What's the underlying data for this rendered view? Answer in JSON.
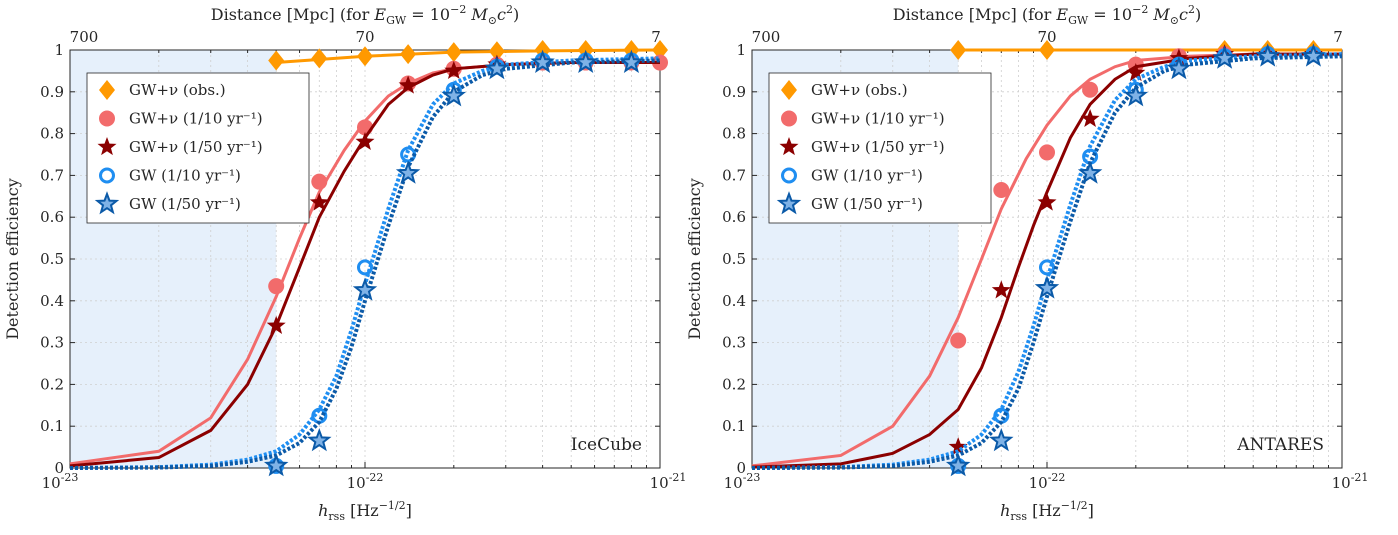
{
  "chart_data": [
    {
      "type": "line",
      "panel": "IceCube",
      "annotation": "IceCube",
      "xlabel": "h_rss [Hz^-1/2]",
      "ylabel": "Detection efficiency",
      "top_xlabel": "Distance [Mpc] (for E_GW = 10^-2 M_sun c^2)",
      "xscale": "log",
      "xlim": [
        1e-23,
        1e-21
      ],
      "ylim": [
        0,
        1
      ],
      "grid": true,
      "legend_position": "top-left",
      "x_ticks": [
        "10^-23",
        "10^-22",
        "10^-21"
      ],
      "y_ticks": [
        "0",
        "0.1",
        "0.2",
        "0.3",
        "0.4",
        "0.5",
        "0.6",
        "0.7",
        "0.8",
        "0.9",
        "1"
      ],
      "top_ticks": [
        "700",
        "70",
        "7"
      ],
      "shaded_region_x": [
        1e-23,
        5e-23
      ],
      "shaded_color": "#e6f0fb",
      "series": [
        {
          "name": "GW+ν (obs.)",
          "marker": "diamond",
          "color": "#ff9900",
          "x": [
            5e-23,
            7e-23,
            1e-22,
            1.4e-22,
            2e-22,
            2.8e-22,
            4e-22,
            5.6e-22,
            8e-22,
            1e-21
          ],
          "y": [
            0.975,
            0.98,
            0.985,
            0.99,
            0.995,
            0.997,
            1.0,
            1.0,
            1.0,
            1.0
          ],
          "curve": {
            "x": [
              5e-23,
              1e-22,
              2e-22,
              4e-22,
              1e-21
            ],
            "y": [
              0.97,
              0.985,
              0.995,
              0.998,
              1.0
            ]
          }
        },
        {
          "name": "GW+ν (1/10 yr⁻¹)",
          "marker": "circle-filled",
          "color": "#f26b6b",
          "x": [
            5e-23,
            7e-23,
            1e-22,
            1.4e-22,
            2e-22,
            2.8e-22,
            4e-22,
            5.6e-22,
            8e-22,
            1e-21
          ],
          "y": [
            0.435,
            0.685,
            0.815,
            0.92,
            0.955,
            0.965,
            0.97,
            0.97,
            0.97,
            0.97
          ],
          "curve": {
            "x": [
              1e-23,
              2e-23,
              3e-23,
              4e-23,
              5e-23,
              6e-23,
              7e-23,
              8.5e-23,
              1e-22,
              1.2e-22,
              1.4e-22,
              1.7e-22,
              2e-22,
              3e-22,
              5e-22,
              1e-21
            ],
            "y": [
              0.01,
              0.04,
              0.12,
              0.26,
              0.41,
              0.55,
              0.66,
              0.76,
              0.83,
              0.89,
              0.92,
              0.945,
              0.955,
              0.965,
              0.97,
              0.97
            ]
          }
        },
        {
          "name": "GW+ν (1/50 yr⁻¹)",
          "marker": "star-filled",
          "color": "#8b0000",
          "x": [
            5e-23,
            7e-23,
            1e-22,
            1.4e-22,
            2e-22,
            2.8e-22,
            4e-22,
            5.6e-22,
            8e-22
          ],
          "y": [
            0.34,
            0.635,
            0.78,
            0.915,
            0.95,
            0.965,
            0.97,
            0.97,
            0.97
          ],
          "curve": {
            "x": [
              1e-23,
              2e-23,
              3e-23,
              4e-23,
              5e-23,
              6e-23,
              7e-23,
              8.5e-23,
              1e-22,
              1.2e-22,
              1.4e-22,
              1.7e-22,
              2e-22,
              3e-22,
              5e-22,
              1e-21
            ],
            "y": [
              0.005,
              0.025,
              0.09,
              0.2,
              0.34,
              0.48,
              0.6,
              0.71,
              0.79,
              0.87,
              0.91,
              0.94,
              0.955,
              0.965,
              0.97,
              0.97
            ]
          }
        },
        {
          "name": "GW (1/10 yr⁻¹)",
          "marker": "circle-open",
          "color": "#1f8ef1",
          "x": [
            5e-23,
            7e-23,
            1e-22,
            1.4e-22,
            2e-22,
            2.8e-22,
            4e-22,
            5.6e-22,
            8e-22
          ],
          "y": [
            0.005,
            0.125,
            0.48,
            0.75,
            0.905,
            0.96,
            0.975,
            0.975,
            0.975
          ],
          "curve": {
            "x": [
              1e-23,
              2e-23,
              3e-23,
              4e-23,
              5e-23,
              6e-23,
              7e-23,
              8e-23,
              9e-23,
              1e-22,
              1.2e-22,
              1.4e-22,
              1.7e-22,
              2e-22,
              2.5e-22,
              3e-22,
              5e-22,
              1e-21
            ],
            "y": [
              0.0,
              0.002,
              0.008,
              0.02,
              0.04,
              0.08,
              0.14,
              0.22,
              0.33,
              0.44,
              0.62,
              0.76,
              0.87,
              0.92,
              0.95,
              0.965,
              0.975,
              0.98
            ]
          }
        },
        {
          "name": "GW (1/50 yr⁻¹)",
          "marker": "star-open",
          "color": "#0b5aa8",
          "x": [
            5e-23,
            7e-23,
            1e-22,
            1.4e-22,
            2e-22,
            2.8e-22,
            4e-22,
            5.6e-22,
            8e-22
          ],
          "y": [
            0.005,
            0.065,
            0.425,
            0.705,
            0.89,
            0.955,
            0.97,
            0.97,
            0.97
          ],
          "curve": {
            "x": [
              1e-23,
              2e-23,
              3e-23,
              4e-23,
              5e-23,
              6e-23,
              7e-23,
              8e-23,
              9e-23,
              1e-22,
              1.2e-22,
              1.4e-22,
              1.7e-22,
              2e-22,
              2.5e-22,
              3e-22,
              5e-22,
              1e-21
            ],
            "y": [
              0.0,
              0.001,
              0.005,
              0.015,
              0.03,
              0.06,
              0.11,
              0.19,
              0.29,
              0.4,
              0.58,
              0.72,
              0.84,
              0.9,
              0.94,
              0.955,
              0.97,
              0.975
            ]
          }
        }
      ]
    },
    {
      "type": "line",
      "panel": "ANTARES",
      "annotation": "ANTARES",
      "xlabel": "h_rss [Hz^-1/2]",
      "ylabel": "Detection efficiency",
      "top_xlabel": "Distance [Mpc] (for E_GW = 10^-2 M_sun c^2)",
      "xscale": "log",
      "xlim": [
        1e-23,
        1e-21
      ],
      "ylim": [
        0,
        1
      ],
      "grid": true,
      "legend_position": "top-left",
      "x_ticks": [
        "10^-23",
        "10^-22",
        "10^-21"
      ],
      "y_ticks": [
        "0",
        "0.1",
        "0.2",
        "0.3",
        "0.4",
        "0.5",
        "0.6",
        "0.7",
        "0.8",
        "0.9",
        "1"
      ],
      "top_ticks": [
        "700",
        "70",
        "7"
      ],
      "shaded_region_x": [
        1e-23,
        5e-23
      ],
      "shaded_color": "#e6f0fb",
      "series": [
        {
          "name": "GW+ν (obs.)",
          "marker": "diamond",
          "color": "#ff9900",
          "x": [
            5e-23,
            1e-22,
            4e-22,
            5.6e-22,
            8e-22
          ],
          "y": [
            1.0,
            1.0,
            1.0,
            1.0,
            1.0
          ],
          "curve": {
            "x": [
              5e-23,
              1e-22,
              2e-22,
              4e-22,
              1e-21
            ],
            "y": [
              1.0,
              1.0,
              1.0,
              1.0,
              1.0
            ]
          }
        },
        {
          "name": "GW+ν (1/10 yr⁻¹)",
          "marker": "circle-filled",
          "color": "#f26b6b",
          "x": [
            5e-23,
            7e-23,
            1e-22,
            1.4e-22,
            2e-22,
            2.8e-22,
            4e-22,
            5.6e-22,
            8e-22
          ],
          "y": [
            0.305,
            0.665,
            0.755,
            0.905,
            0.965,
            0.985,
            0.99,
            0.99,
            0.99
          ],
          "curve": {
            "x": [
              1e-23,
              2e-23,
              3e-23,
              4e-23,
              5e-23,
              6e-23,
              7e-23,
              8.5e-23,
              1e-22,
              1.2e-22,
              1.4e-22,
              1.7e-22,
              2e-22,
              3e-22,
              5e-22,
              1e-21
            ],
            "y": [
              0.005,
              0.03,
              0.1,
              0.22,
              0.36,
              0.5,
              0.62,
              0.74,
              0.82,
              0.89,
              0.93,
              0.96,
              0.975,
              0.985,
              0.99,
              0.99
            ]
          }
        },
        {
          "name": "GW+ν (1/50 yr⁻¹)",
          "marker": "star-filled",
          "color": "#8b0000",
          "x": [
            5e-23,
            7e-23,
            1e-22,
            1.4e-22,
            2e-22,
            2.8e-22,
            4e-22,
            5.6e-22,
            8e-22
          ],
          "y": [
            0.05,
            0.425,
            0.635,
            0.835,
            0.945,
            0.98,
            0.99,
            0.99,
            0.99
          ],
          "curve": {
            "x": [
              1e-23,
              2e-23,
              3e-23,
              4e-23,
              5e-23,
              6e-23,
              7e-23,
              8e-23,
              9e-23,
              1e-22,
              1.2e-22,
              1.4e-22,
              1.7e-22,
              2e-22,
              3e-22,
              5e-22,
              1e-21
            ],
            "y": [
              0.002,
              0.01,
              0.035,
              0.08,
              0.14,
              0.24,
              0.36,
              0.48,
              0.58,
              0.66,
              0.79,
              0.87,
              0.93,
              0.96,
              0.98,
              0.99,
              0.99
            ]
          }
        },
        {
          "name": "GW (1/10 yr⁻¹)",
          "marker": "circle-open",
          "color": "#1f8ef1",
          "x": [
            5e-23,
            7e-23,
            1e-22,
            1.4e-22,
            2e-22,
            2.8e-22,
            4e-22,
            5.6e-22,
            8e-22
          ],
          "y": [
            0.005,
            0.125,
            0.48,
            0.745,
            0.905,
            0.965,
            0.985,
            0.99,
            0.99
          ],
          "curve": {
            "x": [
              1e-23,
              2e-23,
              3e-23,
              4e-23,
              5e-23,
              6e-23,
              7e-23,
              8e-23,
              9e-23,
              1e-22,
              1.2e-22,
              1.4e-22,
              1.7e-22,
              2e-22,
              2.5e-22,
              3e-22,
              5e-22,
              1e-21
            ],
            "y": [
              0.0,
              0.002,
              0.008,
              0.02,
              0.04,
              0.08,
              0.14,
              0.23,
              0.34,
              0.45,
              0.63,
              0.77,
              0.88,
              0.93,
              0.96,
              0.975,
              0.985,
              0.99
            ]
          }
        },
        {
          "name": "GW (1/50 yr⁻¹)",
          "marker": "star-open",
          "color": "#0b5aa8",
          "x": [
            5e-23,
            7e-23,
            1e-22,
            1.4e-22,
            2e-22,
            2.8e-22,
            4e-22,
            5.6e-22,
            8e-22
          ],
          "y": [
            0.005,
            0.065,
            0.43,
            0.705,
            0.89,
            0.955,
            0.98,
            0.985,
            0.985
          ],
          "curve": {
            "x": [
              1e-23,
              2e-23,
              3e-23,
              4e-23,
              5e-23,
              6e-23,
              7e-23,
              8e-23,
              9e-23,
              1e-22,
              1.2e-22,
              1.4e-22,
              1.7e-22,
              2e-22,
              2.5e-22,
              3e-22,
              5e-22,
              1e-21
            ],
            "y": [
              0.0,
              0.001,
              0.005,
              0.015,
              0.03,
              0.06,
              0.11,
              0.19,
              0.3,
              0.41,
              0.59,
              0.73,
              0.85,
              0.91,
              0.95,
              0.965,
              0.98,
              0.985
            ]
          }
        }
      ]
    }
  ]
}
